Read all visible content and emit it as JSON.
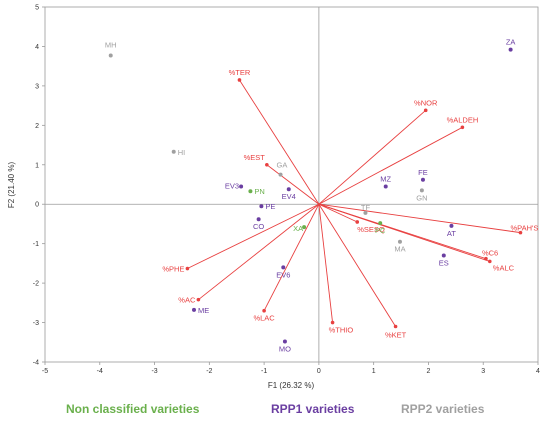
{
  "chart_data": {
    "type": "scatter",
    "title": "",
    "xlabel": "F1 (26.32 %)",
    "ylabel": "F2 (21.40 %)",
    "xlim": [
      -5,
      4
    ],
    "ylim": [
      -4,
      5
    ],
    "xticks": [
      "-5",
      "-4",
      "-3",
      "-2",
      "-1",
      "0",
      "1",
      "2",
      "3",
      "4"
    ],
    "yticks": [
      "5",
      "4",
      "3",
      "2",
      "1",
      "0",
      "-1",
      "-2",
      "-3",
      "-4"
    ],
    "colors": {
      "non_classified": "#6ab04c",
      "rpp1": "#6a3ea1",
      "rpp2": "#a0a0a0",
      "variable": "#e84040"
    },
    "series": [
      {
        "name": "Non classified varieties",
        "color_key": "non_classified",
        "points": [
          {
            "label": "PN",
            "x": -1.25,
            "y": 0.33
          },
          {
            "label": "XA",
            "x": -0.27,
            "y": -0.58
          },
          {
            "label": "PC",
            "x": 1.12,
            "y": -0.48
          }
        ]
      },
      {
        "name": "RPP1 varieties",
        "color_key": "rpp1",
        "points": [
          {
            "label": "ZA",
            "x": 3.5,
            "y": 3.92
          },
          {
            "label": "EV3",
            "x": -1.42,
            "y": 0.45
          },
          {
            "label": "EV4",
            "x": -0.55,
            "y": 0.38
          },
          {
            "label": "PE",
            "x": -1.05,
            "y": -0.05
          },
          {
            "label": "CO",
            "x": -1.1,
            "y": -0.38
          },
          {
            "label": "MZ",
            "x": 1.22,
            "y": 0.45
          },
          {
            "label": "FE",
            "x": 1.9,
            "y": 0.62
          },
          {
            "label": "AT",
            "x": 2.42,
            "y": -0.55
          },
          {
            "label": "ES",
            "x": 2.28,
            "y": -1.3
          },
          {
            "label": "EV6",
            "x": -0.65,
            "y": -1.6
          },
          {
            "label": "ME",
            "x": -2.28,
            "y": -2.68
          },
          {
            "label": "MO",
            "x": -0.62,
            "y": -3.48
          }
        ]
      },
      {
        "name": "RPP2 varieties",
        "color_key": "rpp2",
        "points": [
          {
            "label": "MH",
            "x": -3.8,
            "y": 3.77
          },
          {
            "label": "HI",
            "x": -2.65,
            "y": 1.33
          },
          {
            "label": "GA",
            "x": -0.7,
            "y": 0.75
          },
          {
            "label": "GN",
            "x": 1.88,
            "y": 0.35
          },
          {
            "label": "TF",
            "x": 0.85,
            "y": -0.22
          },
          {
            "label": "MA",
            "x": 1.48,
            "y": -0.95
          }
        ]
      }
    ],
    "variables": [
      {
        "label": "%TER",
        "x": -1.45,
        "y": 3.15
      },
      {
        "label": "%NOR",
        "x": 1.95,
        "y": 2.38
      },
      {
        "label": "%ALDEH",
        "x": 2.62,
        "y": 1.95
      },
      {
        "label": "%EST",
        "x": -0.95,
        "y": 1.0
      },
      {
        "label": "%PAH'S",
        "x": 3.68,
        "y": -0.72
      },
      {
        "label": "%C6",
        "x": 3.05,
        "y": -1.38
      },
      {
        "label": "%ALC",
        "x": 3.12,
        "y": -1.45
      },
      {
        "label": "%SESQ",
        "x": 0.7,
        "y": -0.45
      },
      {
        "label": "%PHE",
        "x": -2.4,
        "y": -1.63
      },
      {
        "label": "%AC",
        "x": -2.2,
        "y": -2.42
      },
      {
        "label": "%LAC",
        "x": -1.0,
        "y": -2.7
      },
      {
        "label": "%THIO",
        "x": 0.25,
        "y": -3.0
      },
      {
        "label": "%KET",
        "x": 1.4,
        "y": -3.1
      }
    ]
  },
  "legend": {
    "non_classified": "Non classified varieties",
    "rpp1": "RPP1 varieties",
    "rpp2": "RPP2 varieties"
  }
}
